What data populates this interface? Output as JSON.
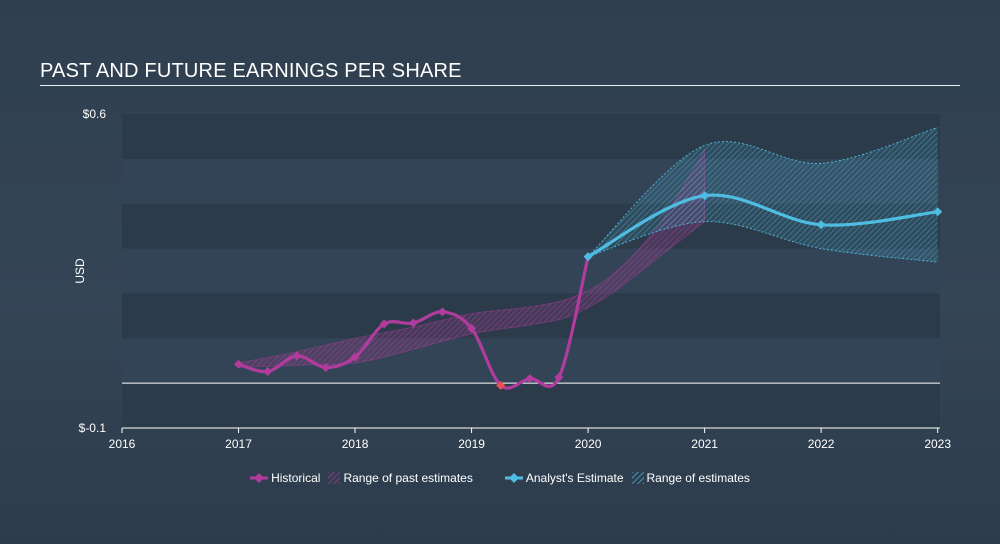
{
  "page_title": "PAST AND FUTURE EARNINGS PER SHARE",
  "colors": {
    "historical": "#b13c9e",
    "estimate": "#4fbce2",
    "negative_point": "#e8524a",
    "band_dark": "#2c3b4a",
    "band_light": "#334456",
    "zero_line": "#ffffff"
  },
  "legend": {
    "historical": "Historical",
    "past_range": "Range of past estimates",
    "estimate": "Analyst's Estimate",
    "future_range": "Range of estimates"
  },
  "chart_data": {
    "type": "line",
    "title": "PAST AND FUTURE EARNINGS PER SHARE",
    "ylabel": "USD",
    "xlabel": "",
    "xlim": [
      2016,
      2023.02
    ],
    "ylim": [
      -0.1,
      0.6
    ],
    "y_tick_labels": [
      "$0.6",
      "$-0.1"
    ],
    "x_ticks": [
      2016,
      2017,
      2018,
      2019,
      2020,
      2021,
      2022,
      2023
    ],
    "x_tick_labels": [
      "2016",
      "2017",
      "2018",
      "2019",
      "2020",
      "2021",
      "2022",
      "2023"
    ],
    "grid": "horizontal bands",
    "legend_position": "bottom-center",
    "series": [
      {
        "name": "Historical",
        "points": [
          [
            2017.0,
            0.042
          ],
          [
            2017.25,
            0.026
          ],
          [
            2017.5,
            0.061
          ],
          [
            2017.75,
            0.035
          ],
          [
            2018.0,
            0.058
          ],
          [
            2018.25,
            0.132
          ],
          [
            2018.5,
            0.134
          ],
          [
            2018.75,
            0.159
          ],
          [
            2019.0,
            0.122
          ],
          [
            2019.25,
            -0.005
          ],
          [
            2019.5,
            0.01
          ],
          [
            2019.75,
            0.013
          ],
          [
            2020.0,
            0.282
          ]
        ]
      },
      {
        "name": "Analyst's Estimate",
        "points": [
          [
            2020.0,
            0.282
          ],
          [
            2021.0,
            0.418
          ],
          [
            2022.0,
            0.353
          ],
          [
            2023.0,
            0.382
          ]
        ]
      }
    ],
    "past_estimates_range": {
      "name": "Range of past estimates",
      "upper": [
        [
          2017.0,
          0.045
        ],
        [
          2017.5,
          0.07
        ],
        [
          2018.0,
          0.1
        ],
        [
          2018.5,
          0.125
        ],
        [
          2019.0,
          0.155
        ],
        [
          2019.5,
          0.17
        ],
        [
          2019.85,
          0.19
        ],
        [
          2020.2,
          0.24
        ],
        [
          2020.6,
          0.35
        ],
        [
          2021.0,
          0.52
        ]
      ],
      "lower": [
        [
          2017.0,
          0.035
        ],
        [
          2017.5,
          0.04
        ],
        [
          2018.0,
          0.045
        ],
        [
          2018.5,
          0.075
        ],
        [
          2019.0,
          0.11
        ],
        [
          2019.5,
          0.13
        ],
        [
          2019.85,
          0.15
        ],
        [
          2020.2,
          0.2
        ],
        [
          2020.6,
          0.28
        ],
        [
          2021.0,
          0.36
        ]
      ]
    },
    "future_estimates_range": {
      "name": "Range of estimates",
      "upper": [
        [
          2020.0,
          0.282
        ],
        [
          2021.0,
          0.53
        ],
        [
          2022.0,
          0.49
        ],
        [
          2023.0,
          0.57
        ]
      ],
      "lower": [
        [
          2020.0,
          0.282
        ],
        [
          2021.0,
          0.36
        ],
        [
          2022.0,
          0.3
        ],
        [
          2023.0,
          0.27
        ]
      ]
    }
  }
}
